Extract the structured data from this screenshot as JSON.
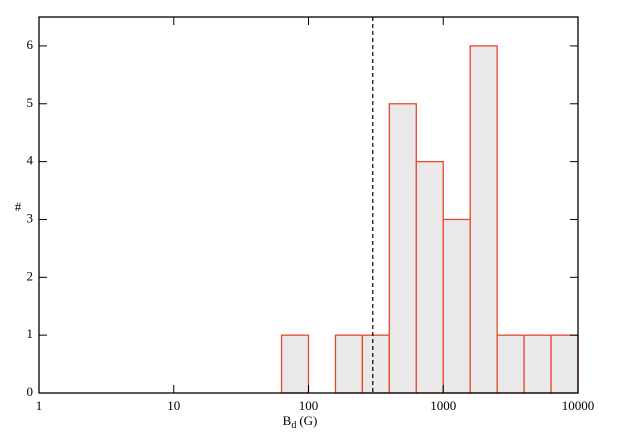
{
  "chart_data": {
    "type": "histogram",
    "bins": [
      63.1,
      100,
      158.5,
      251.2,
      398.1,
      631,
      1000,
      1585,
      2512,
      3981,
      6310,
      10000
    ],
    "counts": [
      1,
      0,
      1,
      1,
      5,
      4,
      3,
      6,
      1,
      1,
      1
    ],
    "fill": "#e8e9e8",
    "color": "#e8482e",
    "xlog": true,
    "xlim": [
      1,
      10000
    ],
    "xticks": [
      1,
      10,
      100,
      1000,
      10000
    ],
    "ylim": [
      0,
      6.5
    ],
    "yticks": [
      0,
      1,
      2,
      3,
      4,
      5,
      6
    ],
    "xlabel": {
      "main": "B",
      "sub": "d",
      "unit": "(G)"
    },
    "ylabel": "#",
    "reference_line": 300
  }
}
